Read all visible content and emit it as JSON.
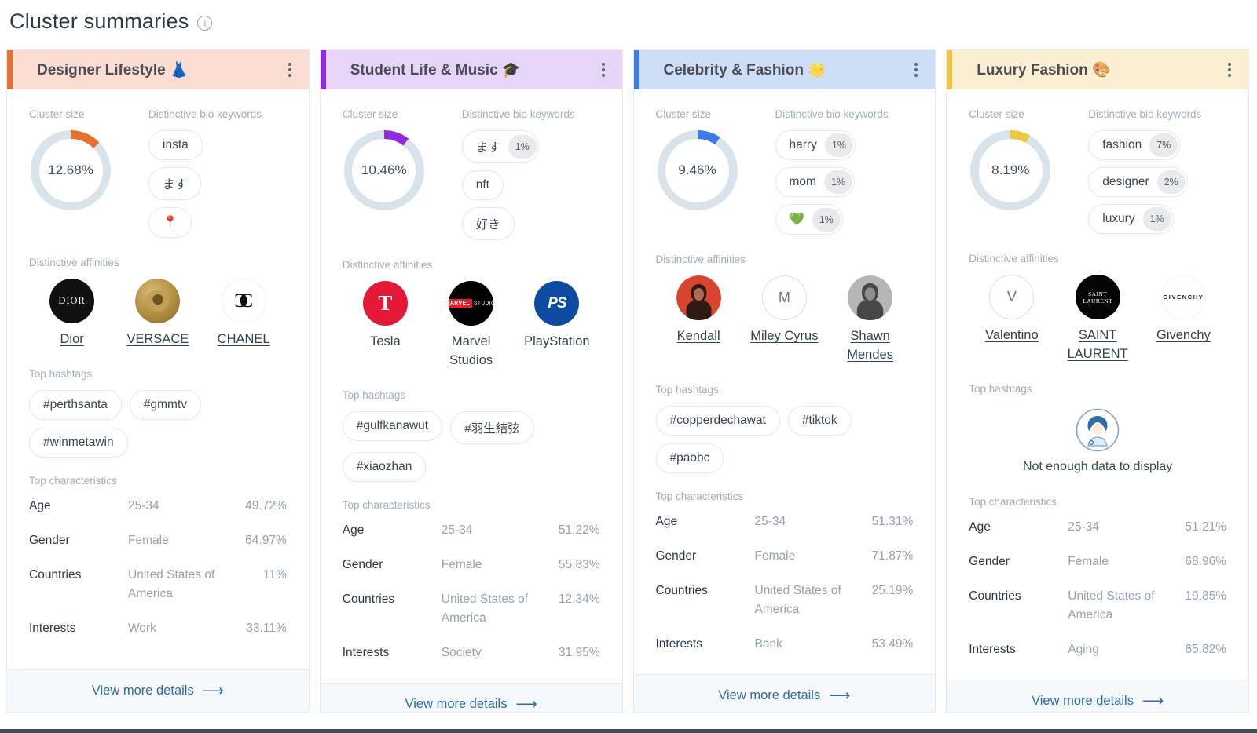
{
  "page": {
    "title": "Cluster summaries",
    "labels": {
      "cluster_size": "Cluster size",
      "bio_keywords": "Distinctive bio keywords",
      "affinities": "Distinctive affinities",
      "hashtags": "Top hashtags",
      "characteristics": "Top characteristics",
      "view_more": "View more details",
      "no_data": "Not enough data to display"
    }
  },
  "cards": [
    {
      "title": "Designer Lifestyle",
      "emoji": "👗",
      "accent": "#E8702E",
      "header_bg": "#FADCD2",
      "cluster_size_text": "12.68%",
      "cluster_pct": 12.68,
      "keywords": [
        {
          "text": "insta",
          "pct": ""
        },
        {
          "text": "ます",
          "pct": ""
        },
        {
          "text": "📍",
          "pct": ""
        }
      ],
      "affinities": [
        {
          "name": "Dior",
          "style": "dior",
          "avatar_text": "DIOR"
        },
        {
          "name": "VERSACE",
          "style": "versace",
          "avatar_text": ""
        },
        {
          "name": "CHANEL",
          "style": "chanel",
          "avatar_text": ""
        }
      ],
      "hashtags": [
        "#perthsanta",
        "#gmmtv",
        "#winmetawin"
      ],
      "characteristics": [
        {
          "key": "Age",
          "value": "25-34",
          "pct": "49.72%"
        },
        {
          "key": "Gender",
          "value": "Female",
          "pct": "64.97%"
        },
        {
          "key": "Countries",
          "value": "United States of America",
          "pct": "11%"
        },
        {
          "key": "Interests",
          "value": "Work",
          "pct": "33.11%"
        }
      ]
    },
    {
      "title": "Student Life & Music",
      "emoji": "🎓",
      "accent": "#8E2BE0",
      "header_bg": "#E7D5F8",
      "cluster_size_text": "10.46%",
      "cluster_pct": 10.46,
      "keywords": [
        {
          "text": "ます",
          "pct": "1%"
        },
        {
          "text": "nft",
          "pct": ""
        },
        {
          "text": "好き",
          "pct": ""
        }
      ],
      "affinities": [
        {
          "name": "Tesla",
          "style": "tesla",
          "avatar_text": "T"
        },
        {
          "name": "Marvel Studios",
          "style": "marvel",
          "avatar_text": "MARVEL STUDIOS"
        },
        {
          "name": "PlayStation",
          "style": "ps",
          "avatar_text": "PS"
        }
      ],
      "hashtags": [
        "#gulfkanawut",
        "#羽生結弦",
        "#xiaozhan"
      ],
      "characteristics": [
        {
          "key": "Age",
          "value": "25-34",
          "pct": "51.22%"
        },
        {
          "key": "Gender",
          "value": "Female",
          "pct": "55.83%"
        },
        {
          "key": "Countries",
          "value": "United States of America",
          "pct": "12.34%"
        },
        {
          "key": "Interests",
          "value": "Society",
          "pct": "31.95%"
        }
      ]
    },
    {
      "title": "Celebrity & Fashion",
      "emoji": "🌟",
      "accent": "#3C7CE6",
      "header_bg": "#CFDEF7",
      "cluster_size_text": "9.46%",
      "cluster_pct": 9.46,
      "keywords": [
        {
          "text": "harry",
          "pct": "1%"
        },
        {
          "text": "mom",
          "pct": "1%"
        },
        {
          "text": "💚",
          "pct": "1%"
        }
      ],
      "affinities": [
        {
          "name": "Kendall",
          "style": "kendall",
          "avatar_text": ""
        },
        {
          "name": "Miley Cyrus",
          "style": "letter",
          "avatar_text": "M"
        },
        {
          "name": "Shawn Mendes",
          "style": "shawn",
          "avatar_text": ""
        }
      ],
      "hashtags": [
        "#copperdechawat",
        "#tiktok",
        "#paobc"
      ],
      "characteristics": [
        {
          "key": "Age",
          "value": "25-34",
          "pct": "51.31%"
        },
        {
          "key": "Gender",
          "value": "Female",
          "pct": "71.87%"
        },
        {
          "key": "Countries",
          "value": "United States of America",
          "pct": "25.19%"
        },
        {
          "key": "Interests",
          "value": "Bank",
          "pct": "53.49%"
        }
      ]
    },
    {
      "title": "Luxury Fashion",
      "emoji": "🎨",
      "accent": "#EEC63F",
      "header_bg": "#FAF0D1",
      "cluster_size_text": "8.19%",
      "cluster_pct": 8.19,
      "keywords": [
        {
          "text": "fashion",
          "pct": "7%"
        },
        {
          "text": "designer",
          "pct": "2%"
        },
        {
          "text": "luxury",
          "pct": "1%"
        }
      ],
      "affinities": [
        {
          "name": "Valentino",
          "style": "letter",
          "avatar_text": "V"
        },
        {
          "name": "SAINT LAURENT",
          "style": "sl",
          "avatar_text": "SAINT LAURENT"
        },
        {
          "name": "Givenchy",
          "style": "givenchy",
          "avatar_text": "GIVENCHY"
        }
      ],
      "hashtags": [],
      "characteristics": [
        {
          "key": "Age",
          "value": "25-34",
          "pct": "51.21%"
        },
        {
          "key": "Gender",
          "value": "Female",
          "pct": "68.96%"
        },
        {
          "key": "Countries",
          "value": "United States of America",
          "pct": "19.85%"
        },
        {
          "key": "Interests",
          "value": "Aging",
          "pct": "65.82%"
        }
      ]
    }
  ],
  "theme": {
    "donut_track": "#D9E3EC"
  }
}
